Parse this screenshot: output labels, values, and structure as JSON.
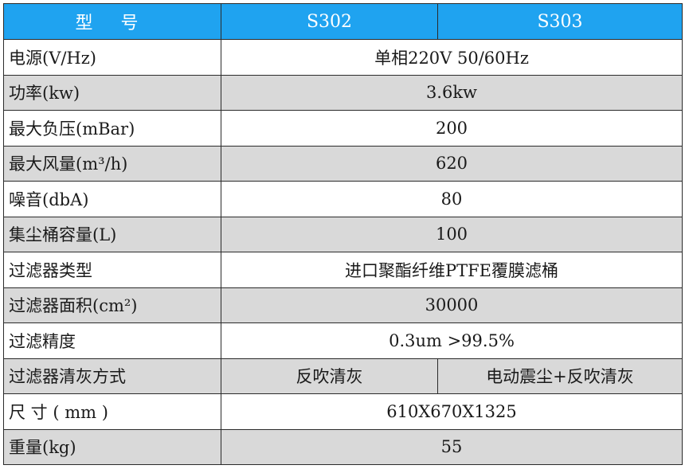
{
  "header": {
    "model_label": "型 号",
    "models": [
      "S302",
      "S303"
    ]
  },
  "rows": [
    {
      "label": "电源(V/Hz)",
      "value": "单相220V 50/60Hz"
    },
    {
      "label": "功率(kw)",
      "value": "3.6kw"
    },
    {
      "label": "最大负压(mBar)",
      "value": "200"
    },
    {
      "label": "最大风量(m³/h)",
      "value": "620"
    },
    {
      "label": "噪音(dbA)",
      "value": "80"
    },
    {
      "label": "集尘桶容量(L)",
      "value": "100"
    },
    {
      "label": "过滤器类型",
      "value": "进口聚酯纤维PTFE覆膜滤桶"
    },
    {
      "label": "过滤器面积(cm²)",
      "value": "30000"
    },
    {
      "label": "过滤精度",
      "value": "0.3um >99.5%"
    },
    {
      "label": "过滤器清灰方式",
      "values": [
        "反吹清灰",
        "电动震尘+反吹清灰"
      ]
    },
    {
      "label": "尺 寸 ( mm )",
      "value": "610X670X1325"
    },
    {
      "label": "重量(kg)",
      "value": "55"
    }
  ],
  "colors": {
    "header_bg": "#1fa3f0",
    "alt_row_bg": "#d9d9d9",
    "border": "#2b2b2b"
  }
}
